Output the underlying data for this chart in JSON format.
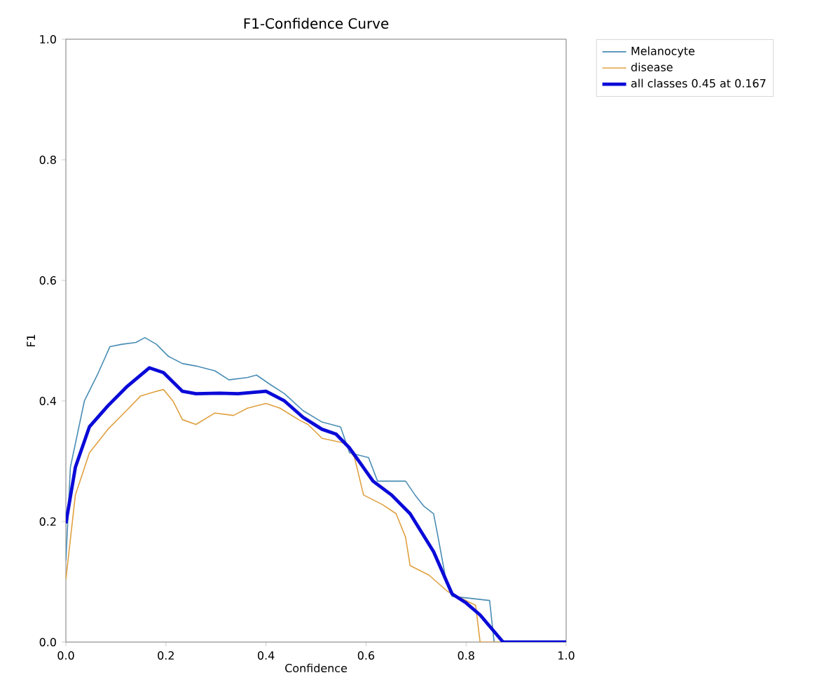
{
  "chart_data": {
    "type": "line",
    "title": "F1-Confidence Curve",
    "xlabel": "Confidence",
    "ylabel": "F1",
    "xlim": [
      0,
      1
    ],
    "ylim": [
      0,
      1
    ],
    "xticks": [
      {
        "value": 0,
        "label": "0.0"
      },
      0.2,
      0.4,
      0.6,
      0.8,
      {
        "value": 1,
        "label": "1.0"
      }
    ],
    "yticks": [
      {
        "value": 0,
        "label": "0.0"
      },
      0.2,
      0.4,
      0.6,
      0.8,
      {
        "value": 1,
        "label": "1.0"
      }
    ],
    "legend": "top right",
    "grid": false,
    "marker": "none",
    "series": [
      {
        "name": "Melanocyte",
        "color": "#4a8db5",
        "x": [
          0,
          0.009,
          0.023,
          0.037,
          0.065,
          0.088,
          0.112,
          0.14,
          0.158,
          0.181,
          0.205,
          0.233,
          0.26,
          0.298,
          0.326,
          0.363,
          0.381,
          0.409,
          0.437,
          0.474,
          0.512,
          0.549,
          0.567,
          0.605,
          0.623,
          0.679,
          0.698,
          0.716,
          0.735,
          0.744,
          0.758,
          0.772,
          0.847,
          0.856,
          1
        ],
        "values": [
          0.135,
          0.29,
          0.345,
          0.4,
          0.447,
          0.49,
          0.494,
          0.497,
          0.505,
          0.494,
          0.474,
          0.462,
          0.458,
          0.45,
          0.435,
          0.439,
          0.443,
          0.427,
          0.412,
          0.384,
          0.365,
          0.357,
          0.314,
          0.306,
          0.267,
          0.267,
          0.244,
          0.225,
          0.213,
          0.174,
          0.111,
          0.076,
          0.069,
          0,
          0
        ]
      },
      {
        "name": "disease",
        "color": "#e0a040",
        "x": [
          0,
          0.019,
          0.047,
          0.084,
          0.121,
          0.149,
          0.177,
          0.195,
          0.214,
          0.233,
          0.26,
          0.298,
          0.335,
          0.363,
          0.4,
          0.428,
          0.465,
          0.484,
          0.512,
          0.558,
          0.577,
          0.595,
          0.633,
          0.66,
          0.679,
          0.688,
          0.726,
          0.763,
          0.819,
          0.828,
          1
        ],
        "values": [
          0.104,
          0.244,
          0.314,
          0.353,
          0.384,
          0.408,
          0.415,
          0.419,
          0.4,
          0.369,
          0.361,
          0.38,
          0.376,
          0.388,
          0.396,
          0.388,
          0.369,
          0.361,
          0.338,
          0.33,
          0.306,
          0.244,
          0.228,
          0.213,
          0.174,
          0.127,
          0.111,
          0.084,
          0.061,
          0,
          0
        ]
      },
      {
        "name": "all classes 0.45 at 0.167",
        "color": "#0a0ad8",
        "x": [
          0,
          0.019,
          0.047,
          0.084,
          0.121,
          0.167,
          0.195,
          0.233,
          0.26,
          0.307,
          0.344,
          0.4,
          0.437,
          0.474,
          0.512,
          0.54,
          0.567,
          0.614,
          0.651,
          0.688,
          0.735,
          0.772,
          0.8,
          0.828,
          0.874,
          1
        ],
        "values": [
          0.197,
          0.29,
          0.357,
          0.392,
          0.423,
          0.455,
          0.447,
          0.416,
          0.412,
          0.413,
          0.412,
          0.416,
          0.4,
          0.373,
          0.353,
          0.345,
          0.322,
          0.267,
          0.244,
          0.213,
          0.15,
          0.08,
          0.065,
          0.045,
          0,
          0
        ]
      }
    ]
  }
}
